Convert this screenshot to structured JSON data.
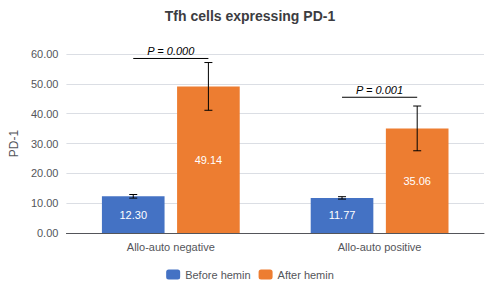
{
  "chart_data": {
    "type": "bar",
    "title": "Tfh cells expressing PD-1",
    "ylabel": "PD-1",
    "categories": [
      "Allo-auto negative",
      "Allo-auto positive"
    ],
    "series": [
      {
        "name": "Before hemin",
        "color": "#4472C4",
        "values": [
          12.3,
          11.77
        ],
        "errors": [
          0.6,
          0.4
        ],
        "value_labels": [
          "12.30",
          "11.77"
        ]
      },
      {
        "name": "After hemin",
        "color": "#ED7D31",
        "values": [
          49.14,
          35.06
        ],
        "errors": [
          8.0,
          7.5
        ],
        "value_labels": [
          "49.14",
          "35.06"
        ]
      }
    ],
    "ylim": [
      0,
      60
    ],
    "yticks": [
      {
        "value": 0,
        "label": "0.00"
      },
      {
        "value": 10,
        "label": "10.00"
      },
      {
        "value": 20,
        "label": "20.00"
      },
      {
        "value": 30,
        "label": "30.00"
      },
      {
        "value": 40,
        "label": "40.00"
      },
      {
        "value": 50,
        "label": "50.00"
      },
      {
        "value": 60,
        "label": "60.00"
      }
    ],
    "grid": true,
    "legend": "bottom",
    "data_labels": true,
    "annotations": [
      {
        "text": "P = 0.000",
        "category": "Allo-auto negative",
        "y": 58.5
      },
      {
        "text": "P = 0.001",
        "category": "Allo-auto positive",
        "y": 45.5
      }
    ]
  }
}
